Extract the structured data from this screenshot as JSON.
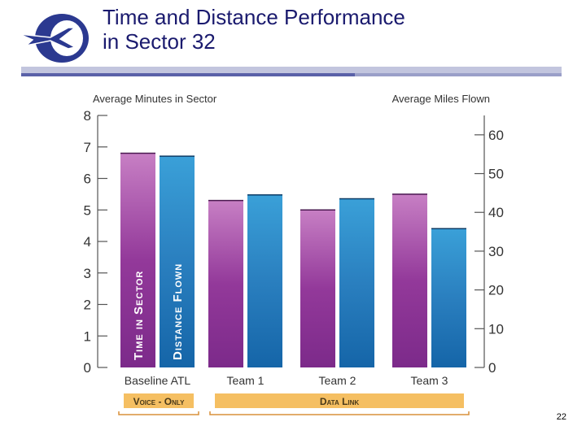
{
  "slide": {
    "title_line1": "Time and Distance Performance",
    "title_line2": "in Sector 32",
    "page_number": "22"
  },
  "colors": {
    "title": "#1a1a6e",
    "minutes_bar": "#8e3a96",
    "miles_bar": "#2a7fbf",
    "axis": "#555555",
    "bracket_fill": "#f5bf62",
    "bracket_line": "#d9903a"
  },
  "chart_data": {
    "type": "bar",
    "categories": [
      "Baseline ATL",
      "Team 1",
      "Team 2",
      "Team 3"
    ],
    "left_axis": {
      "label": "Average Minutes in Sector",
      "range": [
        0,
        8
      ],
      "ticks": [
        "0",
        "1",
        "2",
        "3",
        "4",
        "5",
        "6",
        "7",
        "8"
      ]
    },
    "right_axis": {
      "label": "Average Miles Flown",
      "range": [
        0,
        65
      ],
      "ticks": [
        "0",
        "10",
        "20",
        "30",
        "40",
        "50",
        "60"
      ],
      "tick_values": [
        0,
        10,
        20,
        30,
        40,
        50,
        60
      ]
    },
    "series": [
      {
        "name": "Time in Sector",
        "axis": "left",
        "values": [
          6.8,
          5.3,
          5.0,
          5.5
        ]
      },
      {
        "name": "Distance Flown",
        "axis": "right",
        "values": [
          54.5,
          44.5,
          43.5,
          35.8
        ]
      }
    ],
    "groups": [
      {
        "label": "Voice - Only",
        "categories": [
          "Baseline ATL"
        ]
      },
      {
        "label": "Data Link",
        "categories": [
          "Team 1",
          "Team 2",
          "Team 3"
        ]
      }
    ]
  }
}
